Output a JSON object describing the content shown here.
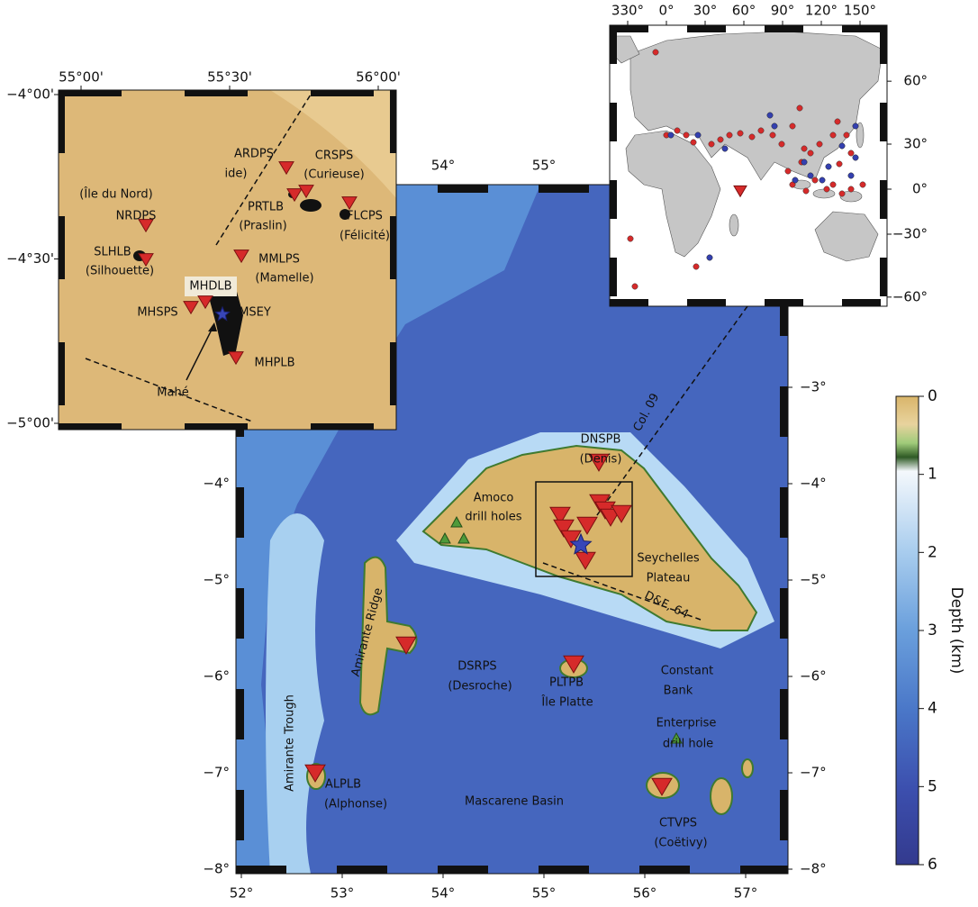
{
  "main_map": {
    "xticks": [
      {
        "value": 52,
        "label": "52°"
      },
      {
        "value": 53,
        "label": "53°"
      },
      {
        "value": 54,
        "label": "54°"
      },
      {
        "value": 55,
        "label": "55°"
      },
      {
        "value": 56,
        "label": "56°"
      },
      {
        "value": 57,
        "label": "57°"
      }
    ],
    "yticks": [
      {
        "value": -3,
        "label": "−3°"
      },
      {
        "value": -4,
        "label": "−4°"
      },
      {
        "value": -5,
        "label": "−5°"
      },
      {
        "value": -6,
        "label": "−6°"
      },
      {
        "value": -7,
        "label": "−7°"
      },
      {
        "value": -8,
        "label": "−8°"
      }
    ],
    "labels": [
      "Col. 09",
      "DNSPB",
      "(Denis)",
      "Amoco",
      "drill holes",
      "Seychelles",
      "Plateau",
      "D&F, 64",
      "Amirante Ridge",
      "DSRPS",
      "(Desroche)",
      "PLTPB",
      "Île Platte",
      "Constant",
      "Bank",
      "Enterprise",
      "drill hole",
      "Amirante Trough",
      "ALPLB",
      "(Alphonse)",
      "Mascarene Basin",
      "CTVPS",
      "(Coëtivy)"
    ]
  },
  "inset_map": {
    "xticks": [
      {
        "value": 55,
        "label": "55°00'"
      },
      {
        "value": 55.5,
        "label": "55°30'"
      },
      {
        "value": 56,
        "label": "56°00'"
      }
    ],
    "yticks": [
      {
        "value": -4,
        "label": "−4°00'"
      },
      {
        "value": -4.5,
        "label": "−4°30'"
      },
      {
        "value": -5,
        "label": "−5°00'"
      }
    ],
    "labels": [
      "ARDPS",
      "ide)",
      "CRSPS",
      "(Curieuse)",
      "(Île du Nord)",
      "NRDPS",
      "PRTLB",
      "(Praslin)",
      "FLCPS",
      "(Félicité)",
      "SLHLB",
      "(Silhouette)",
      "MMLPS",
      "(Mamelle)",
      "MHDLB",
      "MHSPS",
      "MSEY",
      "Mahé",
      "MHPLB"
    ]
  },
  "world_map": {
    "xticks": [
      {
        "value": 330,
        "label": "330°"
      },
      {
        "value": 0,
        "label": "0°"
      },
      {
        "value": 30,
        "label": "30°"
      },
      {
        "value": 60,
        "label": "60°"
      },
      {
        "value": 90,
        "label": "90°"
      },
      {
        "value": 120,
        "label": "120°"
      },
      {
        "value": 150,
        "label": "150°"
      }
    ],
    "yticks": [
      {
        "value": 60,
        "label": "60°"
      },
      {
        "value": 30,
        "label": "30°"
      },
      {
        "value": 0,
        "label": "0°"
      },
      {
        "value": -30,
        "label": "−30°"
      },
      {
        "value": -60,
        "label": "−60°"
      }
    ]
  },
  "colorbar": {
    "title": "Depth (km)",
    "ticks": [
      0,
      1,
      2,
      3,
      4,
      5,
      6
    ]
  }
}
